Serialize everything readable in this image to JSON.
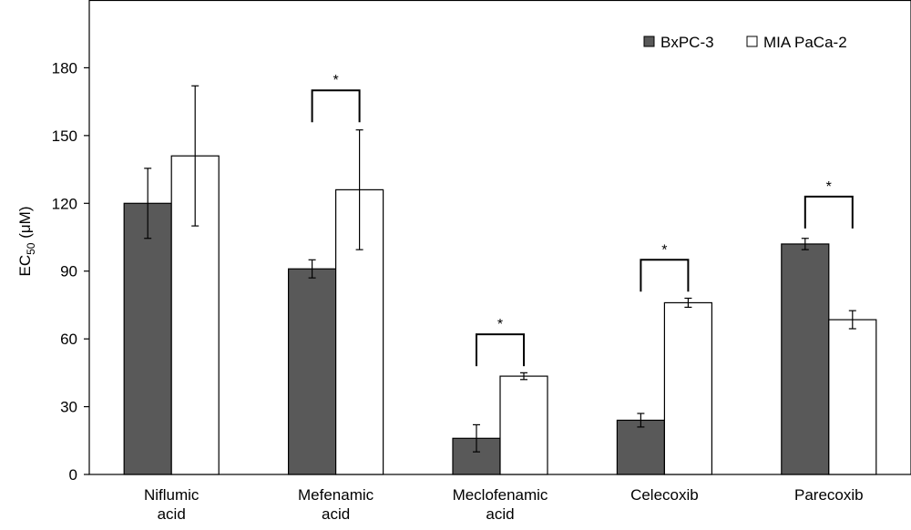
{
  "chart_data": {
    "type": "bar",
    "title": "",
    "xlabel": "",
    "ylabel": {
      "prefix": "EC",
      "subscript": "50",
      "suffix": " (μM)"
    },
    "ylim": [
      0,
      210
    ],
    "yticks": [
      0,
      30,
      60,
      90,
      120,
      150,
      180
    ],
    "categories": [
      [
        "Niflumic",
        "acid"
      ],
      [
        "Mefenamic",
        "acid"
      ],
      [
        "Meclofenamic",
        "acid"
      ],
      [
        "Celecoxib"
      ],
      [
        "Parecoxib"
      ]
    ],
    "series": [
      {
        "name": "BxPC-3",
        "color": "#595959",
        "values": [
          120,
          91,
          16,
          24,
          102
        ],
        "errors": [
          15.5,
          4,
          6,
          3,
          2.5
        ]
      },
      {
        "name": "MIA PaCa-2",
        "color": "#ffffff",
        "values": [
          141,
          126,
          43.5,
          76,
          68.5
        ],
        "errors": [
          31,
          26.5,
          1.5,
          2,
          4
        ]
      }
    ],
    "significance": [
      {
        "category_index": 1,
        "label": "*",
        "bracket_level": 170
      },
      {
        "category_index": 2,
        "label": "*",
        "bracket_level": 62
      },
      {
        "category_index": 3,
        "label": "*",
        "bracket_level": 95
      },
      {
        "category_index": 4,
        "label": "*",
        "bracket_level": 123
      }
    ],
    "legend_position": "top-right",
    "grid": false
  }
}
